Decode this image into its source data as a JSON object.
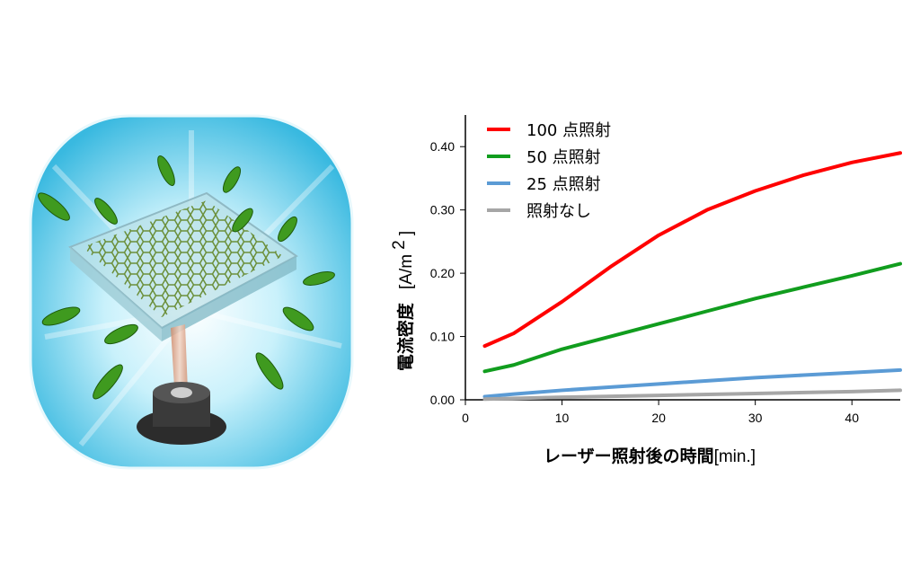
{
  "chart_data": {
    "type": "line",
    "xlabel": "レーザー照射後の時間",
    "xunit": "[min.]",
    "ylabel": "電流密度",
    "yunit": "[A/m",
    "yunit_sup": "2",
    "yunit_close": "]",
    "xlim": [
      0,
      45
    ],
    "ylim": [
      0,
      0.45
    ],
    "xticks": [
      0,
      10,
      20,
      30,
      40
    ],
    "xtick_labels": [
      "0",
      "10",
      "20",
      "30",
      "40"
    ],
    "yticks": [
      0,
      0.1,
      0.2,
      0.3,
      0.4
    ],
    "ytick_labels": [
      "0.00",
      "0.10",
      "0.20",
      "0.30",
      "0.40"
    ],
    "grid": false,
    "legend_position": "top-left",
    "series": [
      {
        "name": "100 点照射",
        "color": "#ff0000",
        "x": [
          2,
          5,
          10,
          15,
          20,
          25,
          30,
          35,
          40,
          45
        ],
        "y": [
          0.085,
          0.105,
          0.155,
          0.21,
          0.26,
          0.3,
          0.33,
          0.355,
          0.375,
          0.39
        ]
      },
      {
        "name": "50 点照射",
        "color": "#119d1e",
        "x": [
          2,
          5,
          10,
          15,
          20,
          25,
          30,
          35,
          40,
          45
        ],
        "y": [
          0.045,
          0.055,
          0.08,
          0.1,
          0.12,
          0.14,
          0.16,
          0.178,
          0.196,
          0.215
        ]
      },
      {
        "name": "25 点照射",
        "color": "#5b9bd5",
        "x": [
          2,
          5,
          10,
          15,
          20,
          25,
          30,
          35,
          40,
          45
        ],
        "y": [
          0.005,
          0.009,
          0.015,
          0.02,
          0.025,
          0.03,
          0.035,
          0.039,
          0.043,
          0.047
        ]
      },
      {
        "name": "照射なし",
        "color": "#a6a6a6",
        "x": [
          2,
          10,
          20,
          30,
          40,
          45
        ],
        "y": [
          0.001,
          0.004,
          0.007,
          0.01,
          0.013,
          0.015
        ]
      }
    ]
  }
}
